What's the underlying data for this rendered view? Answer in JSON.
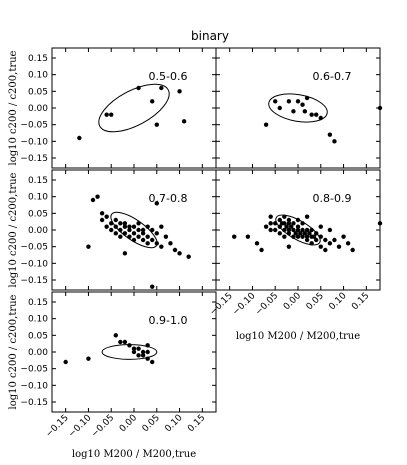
{
  "chart_data": {
    "type": "scatter",
    "title": "binary",
    "xlabel": "log10 M200 / M200,true",
    "ylabel": "log10 c200 / c200,true",
    "xlim": [
      -0.18,
      0.18
    ],
    "ylim": [
      -0.18,
      0.18
    ],
    "xticks": [
      -0.15,
      -0.1,
      -0.05,
      0.0,
      0.05,
      0.1,
      0.15
    ],
    "yticks": [
      0.15,
      0.1,
      0.05,
      0.0,
      -0.05,
      -0.1,
      -0.15
    ],
    "xtick_labels": [
      "−0.15",
      "−0.10",
      "−0.05",
      "0.00",
      "0.05",
      "0.10",
      "0.15"
    ],
    "ytick_labels": [
      "0.15",
      "0.10",
      "0.05",
      "0.00",
      "−0.05",
      "−0.10",
      "−0.15"
    ],
    "grid": false,
    "panels": [
      {
        "label": "0.5-0.6",
        "ellipse": {
          "cx": 0.0,
          "cy": 0.0,
          "rx": 0.085,
          "ry": 0.052,
          "angle_deg": 28
        },
        "points": [
          [
            -0.12,
            -0.09
          ],
          [
            -0.06,
            -0.02
          ],
          [
            -0.05,
            -0.02
          ],
          [
            0.01,
            0.06
          ],
          [
            0.04,
            0.02
          ],
          [
            0.05,
            -0.05
          ],
          [
            0.06,
            0.06
          ],
          [
            0.1,
            0.05
          ],
          [
            0.11,
            -0.04
          ]
        ]
      },
      {
        "label": "0.6-0.7",
        "ellipse": {
          "cx": 0.0,
          "cy": 0.0,
          "rx": 0.065,
          "ry": 0.04,
          "angle_deg": -10
        },
        "points": [
          [
            -0.07,
            -0.05
          ],
          [
            -0.05,
            0.02
          ],
          [
            -0.04,
            0.0
          ],
          [
            -0.02,
            0.02
          ],
          [
            -0.01,
            -0.01
          ],
          [
            0.0,
            0.02
          ],
          [
            0.01,
            0.01
          ],
          [
            0.015,
            -0.01
          ],
          [
            0.02,
            0.03
          ],
          [
            0.03,
            -0.02
          ],
          [
            0.04,
            -0.02
          ],
          [
            0.05,
            -0.03
          ],
          [
            0.07,
            -0.08
          ],
          [
            0.08,
            -0.1
          ],
          [
            0.18,
            0.0
          ]
        ]
      },
      {
        "label": "0.7-0.8",
        "ellipse": {
          "cx": 0.0,
          "cy": 0.0,
          "rx": 0.06,
          "ry": 0.03,
          "angle_deg": -35
        },
        "points": [
          [
            -0.09,
            0.09
          ],
          [
            -0.08,
            0.1
          ],
          [
            -0.07,
            0.05
          ],
          [
            -0.07,
            0.03
          ],
          [
            -0.06,
            0.04
          ],
          [
            -0.06,
            0.01
          ],
          [
            -0.05,
            0.02
          ],
          [
            -0.05,
            0.0
          ],
          [
            -0.04,
            0.03
          ],
          [
            -0.04,
            0.01
          ],
          [
            -0.04,
            -0.01
          ],
          [
            -0.03,
            0.02
          ],
          [
            -0.03,
            0.0
          ],
          [
            -0.03,
            -0.02
          ],
          [
            -0.02,
            0.01
          ],
          [
            -0.02,
            -0.01
          ],
          [
            -0.02,
            0.02
          ],
          [
            -0.01,
            0.0
          ],
          [
            -0.01,
            -0.02
          ],
          [
            -0.01,
            0.01
          ],
          [
            0.0,
            0.01
          ],
          [
            0.0,
            -0.01
          ],
          [
            0.0,
            -0.03
          ],
          [
            0.01,
            0.0
          ],
          [
            0.01,
            -0.02
          ],
          [
            0.01,
            0.02
          ],
          [
            0.02,
            -0.01
          ],
          [
            0.02,
            -0.03
          ],
          [
            0.02,
            0.0
          ],
          [
            0.03,
            -0.02
          ],
          [
            0.03,
            -0.04
          ],
          [
            0.03,
            0.01
          ],
          [
            0.04,
            -0.03
          ],
          [
            0.04,
            0.0
          ],
          [
            0.05,
            -0.01
          ],
          [
            0.05,
            -0.04
          ],
          [
            0.06,
            -0.05
          ],
          [
            0.06,
            0.01
          ],
          [
            0.07,
            -0.02
          ],
          [
            0.08,
            -0.04
          ],
          [
            0.09,
            -0.06
          ],
          [
            0.1,
            -0.07
          ],
          [
            0.12,
            -0.08
          ],
          [
            0.05,
            0.08
          ],
          [
            -0.1,
            -0.05
          ],
          [
            -0.02,
            -0.07
          ],
          [
            0.04,
            -0.17
          ]
        ]
      },
      {
        "label": "0.8-0.9",
        "ellipse": {
          "cx": 0.0,
          "cy": 0.0,
          "rx": 0.055,
          "ry": 0.028,
          "angle_deg": -30
        },
        "points": [
          [
            -0.14,
            -0.02
          ],
          [
            -0.11,
            -0.02
          ],
          [
            -0.09,
            -0.04
          ],
          [
            -0.07,
            0.01
          ],
          [
            -0.06,
            0.02
          ],
          [
            -0.06,
            0.04
          ],
          [
            -0.05,
            0.02
          ],
          [
            -0.05,
            0.0
          ],
          [
            -0.04,
            0.03
          ],
          [
            -0.04,
            0.01
          ],
          [
            -0.04,
            -0.01
          ],
          [
            -0.035,
            0.02
          ],
          [
            -0.03,
            0.0
          ],
          [
            -0.03,
            0.02
          ],
          [
            -0.03,
            -0.02
          ],
          [
            -0.025,
            0.01
          ],
          [
            -0.02,
            0.02
          ],
          [
            -0.02,
            0.0
          ],
          [
            -0.02,
            -0.01
          ],
          [
            -0.02,
            0.03
          ],
          [
            -0.015,
            0.01
          ],
          [
            -0.01,
            0.0
          ],
          [
            -0.01,
            -0.02
          ],
          [
            -0.01,
            0.02
          ],
          [
            -0.005,
            -0.01
          ],
          [
            0.0,
            0.0
          ],
          [
            0.0,
            -0.02
          ],
          [
            0.0,
            0.01
          ],
          [
            0.005,
            -0.01
          ],
          [
            0.01,
            0.0
          ],
          [
            0.01,
            -0.02
          ],
          [
            0.01,
            0.02
          ],
          [
            0.015,
            -0.01
          ],
          [
            0.02,
            -0.02
          ],
          [
            0.02,
            0.0
          ],
          [
            0.02,
            -0.03
          ],
          [
            0.025,
            -0.01
          ],
          [
            0.03,
            -0.02
          ],
          [
            0.03,
            0.0
          ],
          [
            0.03,
            -0.04
          ],
          [
            0.035,
            -0.02
          ],
          [
            0.04,
            -0.03
          ],
          [
            0.04,
            -0.01
          ],
          [
            0.05,
            -0.02
          ],
          [
            0.05,
            -0.05
          ],
          [
            0.06,
            -0.03
          ],
          [
            0.07,
            -0.04
          ],
          [
            0.07,
            0.0
          ],
          [
            0.08,
            -0.03
          ],
          [
            0.09,
            -0.05
          ],
          [
            0.1,
            -0.02
          ],
          [
            0.11,
            -0.04
          ],
          [
            0.12,
            -0.06
          ],
          [
            0.18,
            0.02
          ],
          [
            -0.08,
            -0.06
          ],
          [
            -0.02,
            -0.05
          ],
          [
            0.02,
            0.04
          ],
          [
            0.05,
            0.01
          ],
          [
            -0.06,
            0.0
          ],
          [
            0.06,
            -0.06
          ],
          [
            -0.03,
            0.04
          ],
          [
            0.0,
            0.03
          ]
        ]
      },
      {
        "label": "0.9-1.0",
        "ellipse": {
          "cx": -0.01,
          "cy": 0.0,
          "rx": 0.06,
          "ry": 0.022,
          "angle_deg": 0
        },
        "points": [
          [
            -0.15,
            -0.03
          ],
          [
            -0.1,
            -0.02
          ],
          [
            -0.04,
            0.05
          ],
          [
            -0.03,
            0.03
          ],
          [
            -0.02,
            0.03
          ],
          [
            -0.01,
            0.02
          ],
          [
            0.0,
            0.01
          ],
          [
            0.0,
            0.0
          ],
          [
            0.01,
            0.01
          ],
          [
            0.01,
            -0.01
          ],
          [
            0.02,
            0.0
          ],
          [
            0.02,
            -0.01
          ],
          [
            0.03,
            0.0
          ],
          [
            0.03,
            0.02
          ],
          [
            0.04,
            -0.03
          ],
          [
            0.03,
            -0.02
          ]
        ]
      }
    ]
  }
}
